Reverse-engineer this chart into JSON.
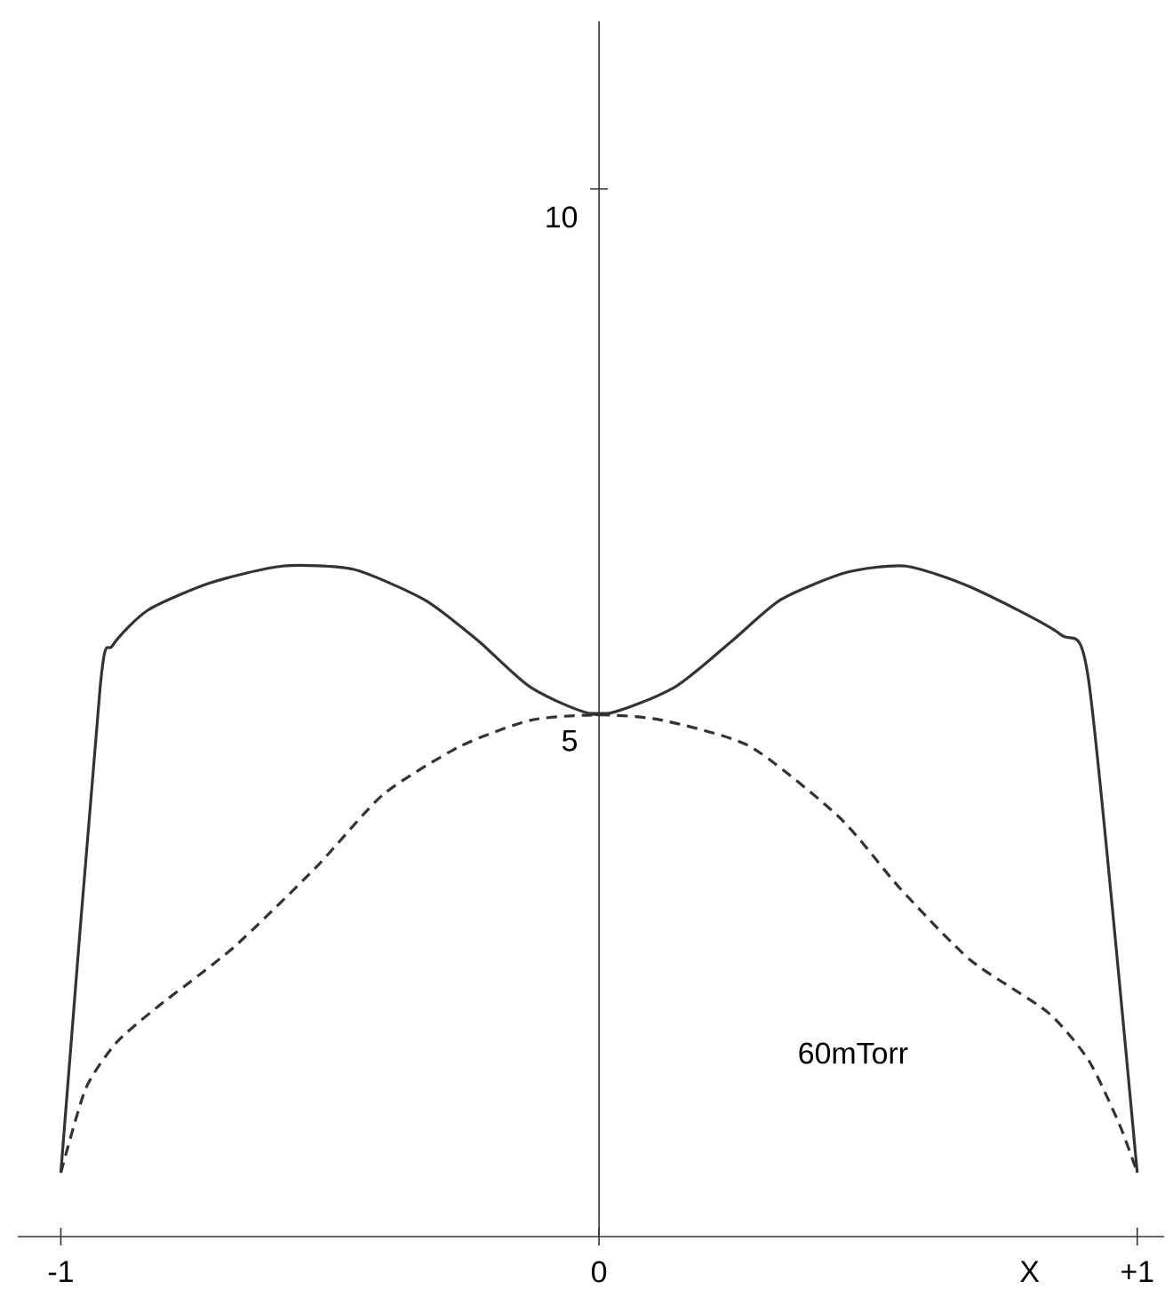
{
  "chart_data": {
    "type": "line",
    "xlabel": "X",
    "x": [
      -1,
      -0.927,
      -0.904,
      -0.838,
      -0.722,
      -0.589,
      -0.457,
      -0.325,
      -0.225,
      -0.126,
      0,
      0.139,
      0.248,
      0.338,
      0.46,
      0.57,
      0.69,
      0.857,
      0.91,
      1
    ],
    "series": [
      {
        "color": "#333333",
        "line_style": "solid",
        "values": [
          0.61,
          5.24,
          5.64,
          5.98,
          6.24,
          6.4,
          6.37,
          6.08,
          5.69,
          5.24,
          4.98,
          5.24,
          5.69,
          6.08,
          6.34,
          6.4,
          6.2,
          5.75,
          5.3,
          0.61
        ]
      },
      {
        "color": "#333333",
        "line_style": "dashed",
        "x": [
          -1,
          -0.954,
          -0.897,
          -0.821,
          -0.679,
          -0.523,
          -0.401,
          -0.258,
          -0.126,
          0,
          0.116,
          0.28,
          0.447,
          0.56,
          0.69,
          0.834,
          0.91,
          0.967,
          1
        ],
        "values": [
          0.61,
          1.41,
          1.85,
          2.19,
          2.76,
          3.54,
          4.22,
          4.68,
          4.93,
          4.98,
          4.93,
          4.68,
          4.0,
          3.32,
          2.64,
          2.14,
          1.68,
          1.07,
          0.61
        ]
      }
    ],
    "xlim": [
      -1.08,
      1.05
    ],
    "ylim": [
      0,
      11.6
    ],
    "xticks": [
      {
        "value": -1,
        "label": "-1"
      },
      0,
      {
        "value": 1,
        "label": "+1"
      }
    ],
    "yticks": [
      5,
      10
    ],
    "annotations": [
      "60mTorr"
    ],
    "grid": false,
    "marker": "none"
  }
}
